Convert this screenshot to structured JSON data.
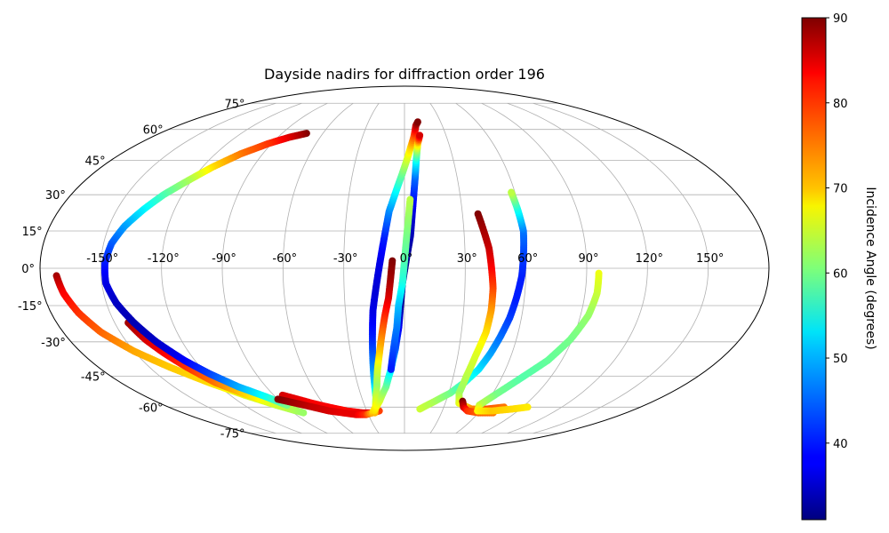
{
  "chart_data": {
    "type": "scatter",
    "projection": "mollweide",
    "title": "Dayside nadirs for diffraction order 196",
    "x_ticks": [
      "-150°",
      "-120°",
      "-90°",
      "-60°",
      "-30°",
      "0°",
      "30°",
      "60°",
      "90°",
      "120°",
      "150°"
    ],
    "y_ticks": [
      "75°",
      "60°",
      "45°",
      "30°",
      "15°",
      "0°",
      "-15°",
      "-30°",
      "-45°",
      "-60°",
      "-75°"
    ],
    "x_tick_values": [
      -150,
      -120,
      -90,
      -60,
      -30,
      0,
      30,
      60,
      90,
      120,
      150
    ],
    "y_tick_values": [
      75,
      60,
      45,
      30,
      15,
      0,
      -15,
      -30,
      -45,
      -60,
      -75
    ],
    "xlim": [
      -180,
      180
    ],
    "ylim": [
      -90,
      90
    ],
    "grid": true,
    "colormap": "jet",
    "colorbar": {
      "label": "Incidence Angle (degrees)",
      "min": 31,
      "max": 90,
      "ticks": [
        "40",
        "50",
        "60",
        "70",
        "80",
        "90"
      ],
      "tick_values": [
        40,
        50,
        60,
        70,
        80,
        90
      ],
      "placement": "right"
    },
    "series": [
      {
        "points": [
          [
            -172,
            -3,
            88
          ],
          [
            -170,
            -10,
            83
          ],
          [
            -166,
            -18,
            80
          ],
          [
            -160,
            -26,
            77
          ],
          [
            -150,
            -34,
            73
          ],
          [
            -138,
            -41,
            71
          ],
          [
            -124,
            -48,
            70
          ],
          [
            -110,
            -54,
            66
          ],
          [
            -96,
            -59,
            64
          ],
          [
            -86,
            -62,
            62
          ]
        ]
      },
      {
        "points": [
          [
            -143,
            -22,
            88
          ],
          [
            -139,
            -29,
            85
          ],
          [
            -134,
            -35,
            83
          ],
          [
            -128,
            -41,
            80
          ],
          [
            -120,
            -48,
            76
          ],
          [
            -110,
            -53,
            71
          ],
          [
            -98,
            -58,
            66
          ],
          [
            -82,
            -63,
            62
          ]
        ]
      },
      {
        "points": [
          [
            -72,
            58,
            90
          ],
          [
            -82,
            56,
            85
          ],
          [
            -92,
            53,
            80
          ],
          [
            -104,
            48,
            76
          ],
          [
            -114,
            42,
            70
          ],
          [
            -122,
            36,
            63
          ],
          [
            -130,
            30,
            58
          ],
          [
            -136,
            24,
            53
          ],
          [
            -142,
            17,
            48
          ],
          [
            -146,
            10,
            44
          ],
          [
            -148,
            2,
            40
          ],
          [
            -148,
            -6,
            37
          ],
          [
            -145,
            -14,
            35
          ],
          [
            -140,
            -22,
            34
          ],
          [
            -134,
            -30,
            35
          ],
          [
            -126,
            -38,
            38
          ],
          [
            -118,
            -44,
            42
          ],
          [
            -108,
            -50,
            48
          ],
          [
            -96,
            -55,
            54
          ],
          [
            -88,
            -59,
            60
          ]
        ]
      },
      {
        "points": [
          [
            -84,
            -54,
            85
          ],
          [
            -76,
            -56,
            84
          ],
          [
            -68,
            -58,
            83
          ],
          [
            -58,
            -60,
            83
          ],
          [
            -46,
            -62,
            82
          ],
          [
            -34,
            -63,
            84
          ],
          [
            -26,
            -63,
            84
          ],
          [
            -20,
            -62,
            79
          ]
        ]
      },
      {
        "points": [
          [
            -90,
            -56,
            90
          ],
          [
            -80,
            -58,
            88
          ],
          [
            -70,
            -60,
            86
          ],
          [
            -60,
            -62,
            85
          ],
          [
            -50,
            -63,
            84
          ],
          [
            -40,
            -64,
            84
          ],
          [
            -32,
            -64,
            80
          ],
          [
            -26,
            -63,
            72
          ],
          [
            -22,
            -60,
            65
          ],
          [
            -20,
            -55,
            58
          ],
          [
            -19,
            -47,
            50
          ],
          [
            -18,
            -37,
            45
          ],
          [
            -17,
            -27,
            40
          ],
          [
            -16,
            -17,
            37
          ],
          [
            -14,
            -7,
            36
          ],
          [
            -12,
            3,
            37
          ],
          [
            -10,
            13,
            40
          ],
          [
            -8,
            23,
            46
          ],
          [
            -4,
            33,
            54
          ],
          [
            0,
            42,
            62
          ],
          [
            4,
            51,
            70
          ],
          [
            7,
            57,
            78
          ],
          [
            9,
            62,
            86
          ],
          [
            11,
            64,
            90
          ]
        ]
      },
      {
        "points": [
          [
            -6,
            3,
            90
          ],
          [
            -7,
            -5,
            88
          ],
          [
            -8,
            -12,
            85
          ],
          [
            -10,
            -19,
            81
          ],
          [
            -12,
            -27,
            76
          ],
          [
            -14,
            -35,
            71
          ],
          [
            -16,
            -42,
            66
          ],
          [
            -18,
            -50,
            62
          ],
          [
            -21,
            -58,
            66
          ],
          [
            -24,
            -63,
            72
          ]
        ]
      },
      {
        "points": [
          [
            -24,
            -62,
            70
          ],
          [
            -18,
            -57,
            66
          ],
          [
            -12,
            -50,
            60
          ],
          [
            -8,
            -42,
            52
          ],
          [
            -5,
            -33,
            44
          ],
          [
            -3,
            -24,
            38
          ],
          [
            -2,
            -15,
            33
          ],
          [
            -1,
            -6,
            31
          ],
          [
            1,
            4,
            32
          ],
          [
            3,
            13,
            34
          ],
          [
            4,
            22,
            36
          ],
          [
            5,
            30,
            40
          ],
          [
            6,
            37,
            44
          ],
          [
            7,
            44,
            52
          ],
          [
            8,
            49,
            61
          ],
          [
            9,
            53,
            70
          ],
          [
            10,
            55,
            78
          ],
          [
            11,
            57,
            85
          ]
        ]
      },
      {
        "points": [
          [
            3,
            28,
            64
          ],
          [
            2,
            20,
            62
          ],
          [
            1,
            12,
            60
          ],
          [
            0,
            3,
            58
          ],
          [
            -1,
            -6,
            55
          ],
          [
            -3,
            -15,
            50
          ],
          [
            -4,
            -24,
            46
          ],
          [
            -6,
            -33,
            43
          ],
          [
            -8,
            -42,
            40
          ]
        ]
      },
      {
        "points": [
          [
            12,
            -61,
            65
          ],
          [
            22,
            -57,
            63
          ],
          [
            31,
            -53,
            60
          ],
          [
            38,
            -48,
            56
          ],
          [
            44,
            -42,
            52
          ],
          [
            48,
            -35,
            48
          ],
          [
            51,
            -28,
            45
          ],
          [
            54,
            -20,
            42
          ],
          [
            56,
            -12,
            40
          ],
          [
            58,
            -3,
            40
          ],
          [
            59,
            6,
            42
          ],
          [
            60,
            15,
            45
          ],
          [
            59,
            24,
            54
          ],
          [
            58,
            31,
            64
          ]
        ]
      },
      {
        "points": [
          [
            38,
            22,
            90
          ],
          [
            40,
            15,
            88
          ],
          [
            42,
            8,
            86
          ],
          [
            43,
            0,
            83
          ],
          [
            44,
            -8,
            79
          ],
          [
            44,
            -17,
            74
          ],
          [
            43,
            -26,
            70
          ],
          [
            40,
            -36,
            66
          ],
          [
            38,
            -45,
            64
          ],
          [
            37,
            -53,
            62
          ],
          [
            40,
            -58,
            66
          ],
          [
            52,
            -61,
            74
          ],
          [
            64,
            -61,
            78
          ],
          [
            76,
            -60,
            76
          ]
        ]
      },
      {
        "points": [
          [
            42,
            -57,
            90
          ],
          [
            45,
            -60,
            86
          ],
          [
            50,
            -62,
            80
          ],
          [
            60,
            -63,
            77
          ],
          [
            72,
            -63,
            76
          ]
        ]
      },
      {
        "points": [
          [
            96,
            -2,
            67
          ],
          [
            96,
            -10,
            65
          ],
          [
            94,
            -19,
            62
          ],
          [
            89,
            -29,
            60
          ],
          [
            82,
            -38,
            59
          ],
          [
            72,
            -46,
            58
          ],
          [
            62,
            -54,
            60
          ],
          [
            56,
            -59,
            64
          ],
          [
            58,
            -62,
            68
          ],
          [
            70,
            -62,
            71
          ],
          [
            84,
            -61,
            70
          ],
          [
            94,
            -60,
            69
          ]
        ]
      }
    ]
  }
}
